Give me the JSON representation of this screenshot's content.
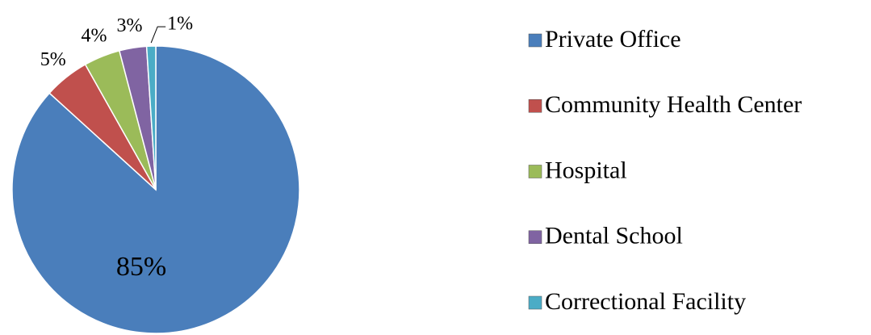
{
  "chart_data": {
    "type": "pie",
    "categories": [
      "Private Office",
      "Community Health Center",
      "Hospital",
      "Dental School",
      "Correctional Facility"
    ],
    "values": [
      85,
      5,
      4,
      3,
      1
    ],
    "value_labels": [
      "85%",
      "5%",
      "4%",
      "3%",
      "1%"
    ],
    "colors": [
      "#4a7ebb",
      "#c0504d",
      "#9bbb59",
      "#8064a2",
      "#4bacc6"
    ],
    "legend": "right"
  }
}
